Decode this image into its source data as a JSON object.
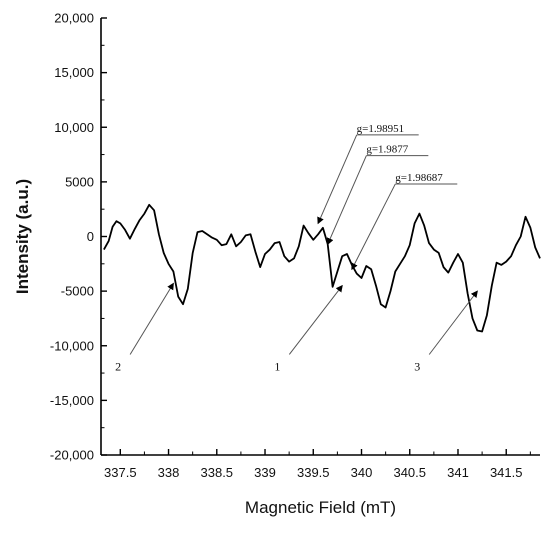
{
  "chart_data": {
    "type": "line",
    "title": "",
    "xlabel": "Magnetic Field (mT)",
    "ylabel": "Intensity (a.u.)",
    "xlim": [
      337.3,
      341.85
    ],
    "ylim": [
      -20000,
      20000
    ],
    "x_ticks": [
      337.5,
      338,
      338.5,
      339,
      339.5,
      340,
      340.5,
      341,
      341.5
    ],
    "x_tick_labels": [
      "337.5",
      "338",
      "338.5",
      "339",
      "339.5",
      "340",
      "340.5",
      "341",
      "341.5"
    ],
    "y_ticks": [
      20000,
      15000,
      10000,
      5000,
      0,
      -5000,
      -10000,
      -15000,
      -20000
    ],
    "y_tick_labels": [
      "20,000",
      "15,000",
      "10,000",
      "5000",
      "0",
      "-5000",
      "-10,000",
      "-15,000",
      "-20,000"
    ],
    "grid": false,
    "line_color": "#000000",
    "series": [
      {
        "x": [
          337.33,
          337.38,
          337.42,
          337.46,
          337.5,
          337.55,
          337.6,
          337.65,
          337.7,
          337.75,
          337.8,
          337.85,
          337.9,
          337.95,
          338.0,
          338.05,
          338.1,
          338.15,
          338.2,
          338.25,
          338.3,
          338.35,
          338.4,
          338.45,
          338.5,
          338.55,
          338.6,
          338.65,
          338.7,
          338.75,
          338.8,
          338.85,
          338.9,
          338.95,
          339.0,
          339.05,
          339.1,
          339.15,
          339.2,
          339.25,
          339.3,
          339.35,
          339.4,
          339.45,
          339.5,
          339.55,
          339.6,
          339.65,
          339.7,
          339.75,
          339.8,
          339.85,
          339.9,
          339.95,
          340.0,
          340.05,
          340.1,
          340.15,
          340.2,
          340.25,
          340.3,
          340.35,
          340.4,
          340.45,
          340.5,
          340.55,
          340.6,
          340.65,
          340.7,
          340.75,
          340.8,
          340.85,
          340.9,
          340.95,
          341.0,
          341.05,
          341.1,
          341.15,
          341.2,
          341.25,
          341.3,
          341.35,
          341.4,
          341.45,
          341.5,
          341.55,
          341.6,
          341.65,
          341.7,
          341.75,
          341.8,
          341.85
        ],
        "y": [
          -1200,
          -400,
          900,
          1400,
          1200,
          600,
          -200,
          700,
          1500,
          2100,
          2900,
          2400,
          200,
          -1500,
          -2500,
          -3200,
          -5500,
          -6200,
          -4800,
          -1500,
          400,
          500,
          200,
          -100,
          -300,
          -800,
          -700,
          200,
          -900,
          -500,
          100,
          200,
          -1400,
          -2800,
          -1600,
          -1200,
          -600,
          -500,
          -1800,
          -2300,
          -2000,
          -900,
          1000,
          300,
          -300,
          200,
          800,
          -700,
          -4600,
          -3200,
          -1800,
          -1600,
          -2600,
          -3400,
          -3800,
          -2700,
          -3000,
          -4500,
          -6200,
          -6500,
          -5000,
          -3200,
          -2500,
          -1800,
          -800,
          1200,
          2100,
          1000,
          -600,
          -1200,
          -1500,
          -2800,
          -3300,
          -2400,
          -1600,
          -2400,
          -5200,
          -7500,
          -8600,
          -8700,
          -7200,
          -4500,
          -2400,
          -2600,
          -2300,
          -1800,
          -800,
          0,
          1800,
          800,
          -1000,
          -2000
        ]
      }
    ],
    "annotations": [
      {
        "text": "g=1.98951",
        "target_x": 339.55,
        "target_y": 1200
      },
      {
        "text": "g=1.9877",
        "target_x": 339.65,
        "target_y": -700
      },
      {
        "text": "g=1.98687",
        "target_x": 339.9,
        "target_y": -3000
      }
    ],
    "peak_labels": [
      {
        "text": "2",
        "x": 337.55,
        "y": -10800,
        "arrow_to_x": 338.05,
        "arrow_to_y": -4300
      },
      {
        "text": "1",
        "x": 339.2,
        "y": -10800,
        "arrow_to_x": 339.8,
        "arrow_to_y": -4500
      },
      {
        "text": "3",
        "x": 340.65,
        "y": -10800,
        "arrow_to_x": 341.2,
        "arrow_to_y": -5000
      }
    ]
  }
}
